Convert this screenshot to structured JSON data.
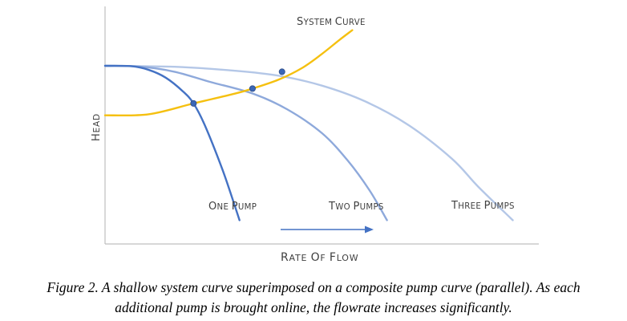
{
  "chart_data": {
    "type": "line",
    "xlabel": "Rate of Flow",
    "ylabel": "Head",
    "ticks": "none",
    "grid": false,
    "series": [
      {
        "name": "One Pump",
        "color": "#4472C4",
        "points": [
          [
            0,
            80
          ],
          [
            6,
            79.8
          ],
          [
            10,
            78
          ],
          [
            14,
            74
          ],
          [
            18,
            67
          ],
          [
            20.4,
            61
          ],
          [
            23,
            50
          ],
          [
            27,
            28
          ],
          [
            29.5,
            12
          ],
          [
            31,
            2
          ]
        ]
      },
      {
        "name": "Two Pumps",
        "color": "#8EA9DB",
        "points": [
          [
            0,
            80
          ],
          [
            8,
            79.6
          ],
          [
            16,
            77
          ],
          [
            24,
            72
          ],
          [
            34,
            66
          ],
          [
            42,
            58
          ],
          [
            50,
            46
          ],
          [
            56,
            32
          ],
          [
            61,
            17
          ],
          [
            65,
            2
          ]
        ]
      },
      {
        "name": "Three Pumps",
        "color": "#B4C7E7",
        "points": [
          [
            0,
            80
          ],
          [
            16,
            79.5
          ],
          [
            30,
            77.5
          ],
          [
            40,
            75
          ],
          [
            50,
            70
          ],
          [
            60,
            62
          ],
          [
            70,
            50
          ],
          [
            80,
            33
          ],
          [
            86,
            19
          ],
          [
            94,
            2
          ]
        ]
      },
      {
        "name": "System Curve",
        "color": "#F5C010",
        "points": [
          [
            0,
            55
          ],
          [
            10,
            55.5
          ],
          [
            20.4,
            61
          ],
          [
            30,
            66
          ],
          [
            34,
            68.5
          ],
          [
            40,
            73
          ],
          [
            45.5,
            79
          ],
          [
            50,
            86
          ],
          [
            54,
            93
          ],
          [
            57,
            98
          ]
        ]
      }
    ],
    "operating_points": [
      {
        "x": 20.4,
        "y": 61
      },
      {
        "x": 34,
        "y": 68.5
      },
      {
        "x": 40.8,
        "y": 77
      }
    ],
    "annotation": "flow-increase arrow",
    "xlim": [
      0,
      100
    ],
    "ylim": [
      -10,
      110
    ]
  },
  "labels": {
    "system_curve": "System Curve",
    "one_pump": "One Pump",
    "two_pumps": "Two Pumps",
    "three_pumps": "Three Pumps",
    "x_axis": "Rate of Flow",
    "y_axis": "Head"
  },
  "caption": {
    "line1": "Figure 2. A shallow system curve superimposed on a composite pump curve (parallel).  As each",
    "line2": "additional pump is brought online, the flowrate increases significantly."
  }
}
